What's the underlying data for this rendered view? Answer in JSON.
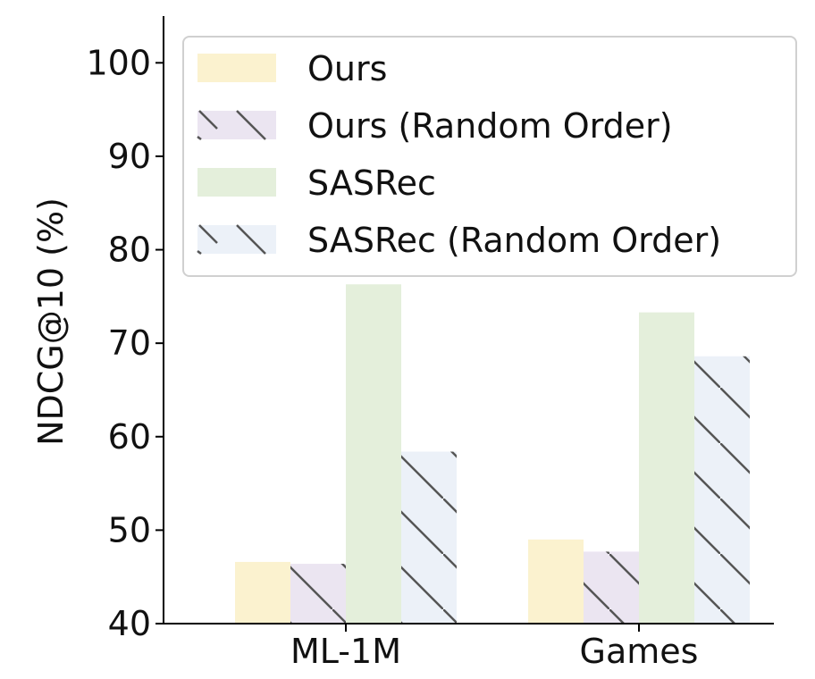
{
  "chart_data": {
    "type": "bar",
    "title": "",
    "xlabel": "",
    "ylabel": "NDCG@10 (%)",
    "ylim": [
      40,
      105
    ],
    "yticks": [
      40,
      50,
      60,
      70,
      80,
      90,
      100
    ],
    "categories": [
      "ML-1M",
      "Games"
    ],
    "series": [
      {
        "name": "Ours",
        "values": [
          46.6,
          49.0
        ],
        "color": "#fbf2cf",
        "hatch": false
      },
      {
        "name": "Ours (Random Order)",
        "values": [
          46.4,
          47.7
        ],
        "color": "#ebe5f1",
        "hatch": true
      },
      {
        "name": "SASRec",
        "values": [
          76.3,
          73.3
        ],
        "color": "#e4efdb",
        "hatch": false
      },
      {
        "name": "SASRec (Random Order)",
        "values": [
          58.4,
          68.6
        ],
        "color": "#ecf1f8",
        "hatch": true
      }
    ],
    "legend_position": "top-right",
    "hatch_color": "#555555",
    "grid": false
  }
}
